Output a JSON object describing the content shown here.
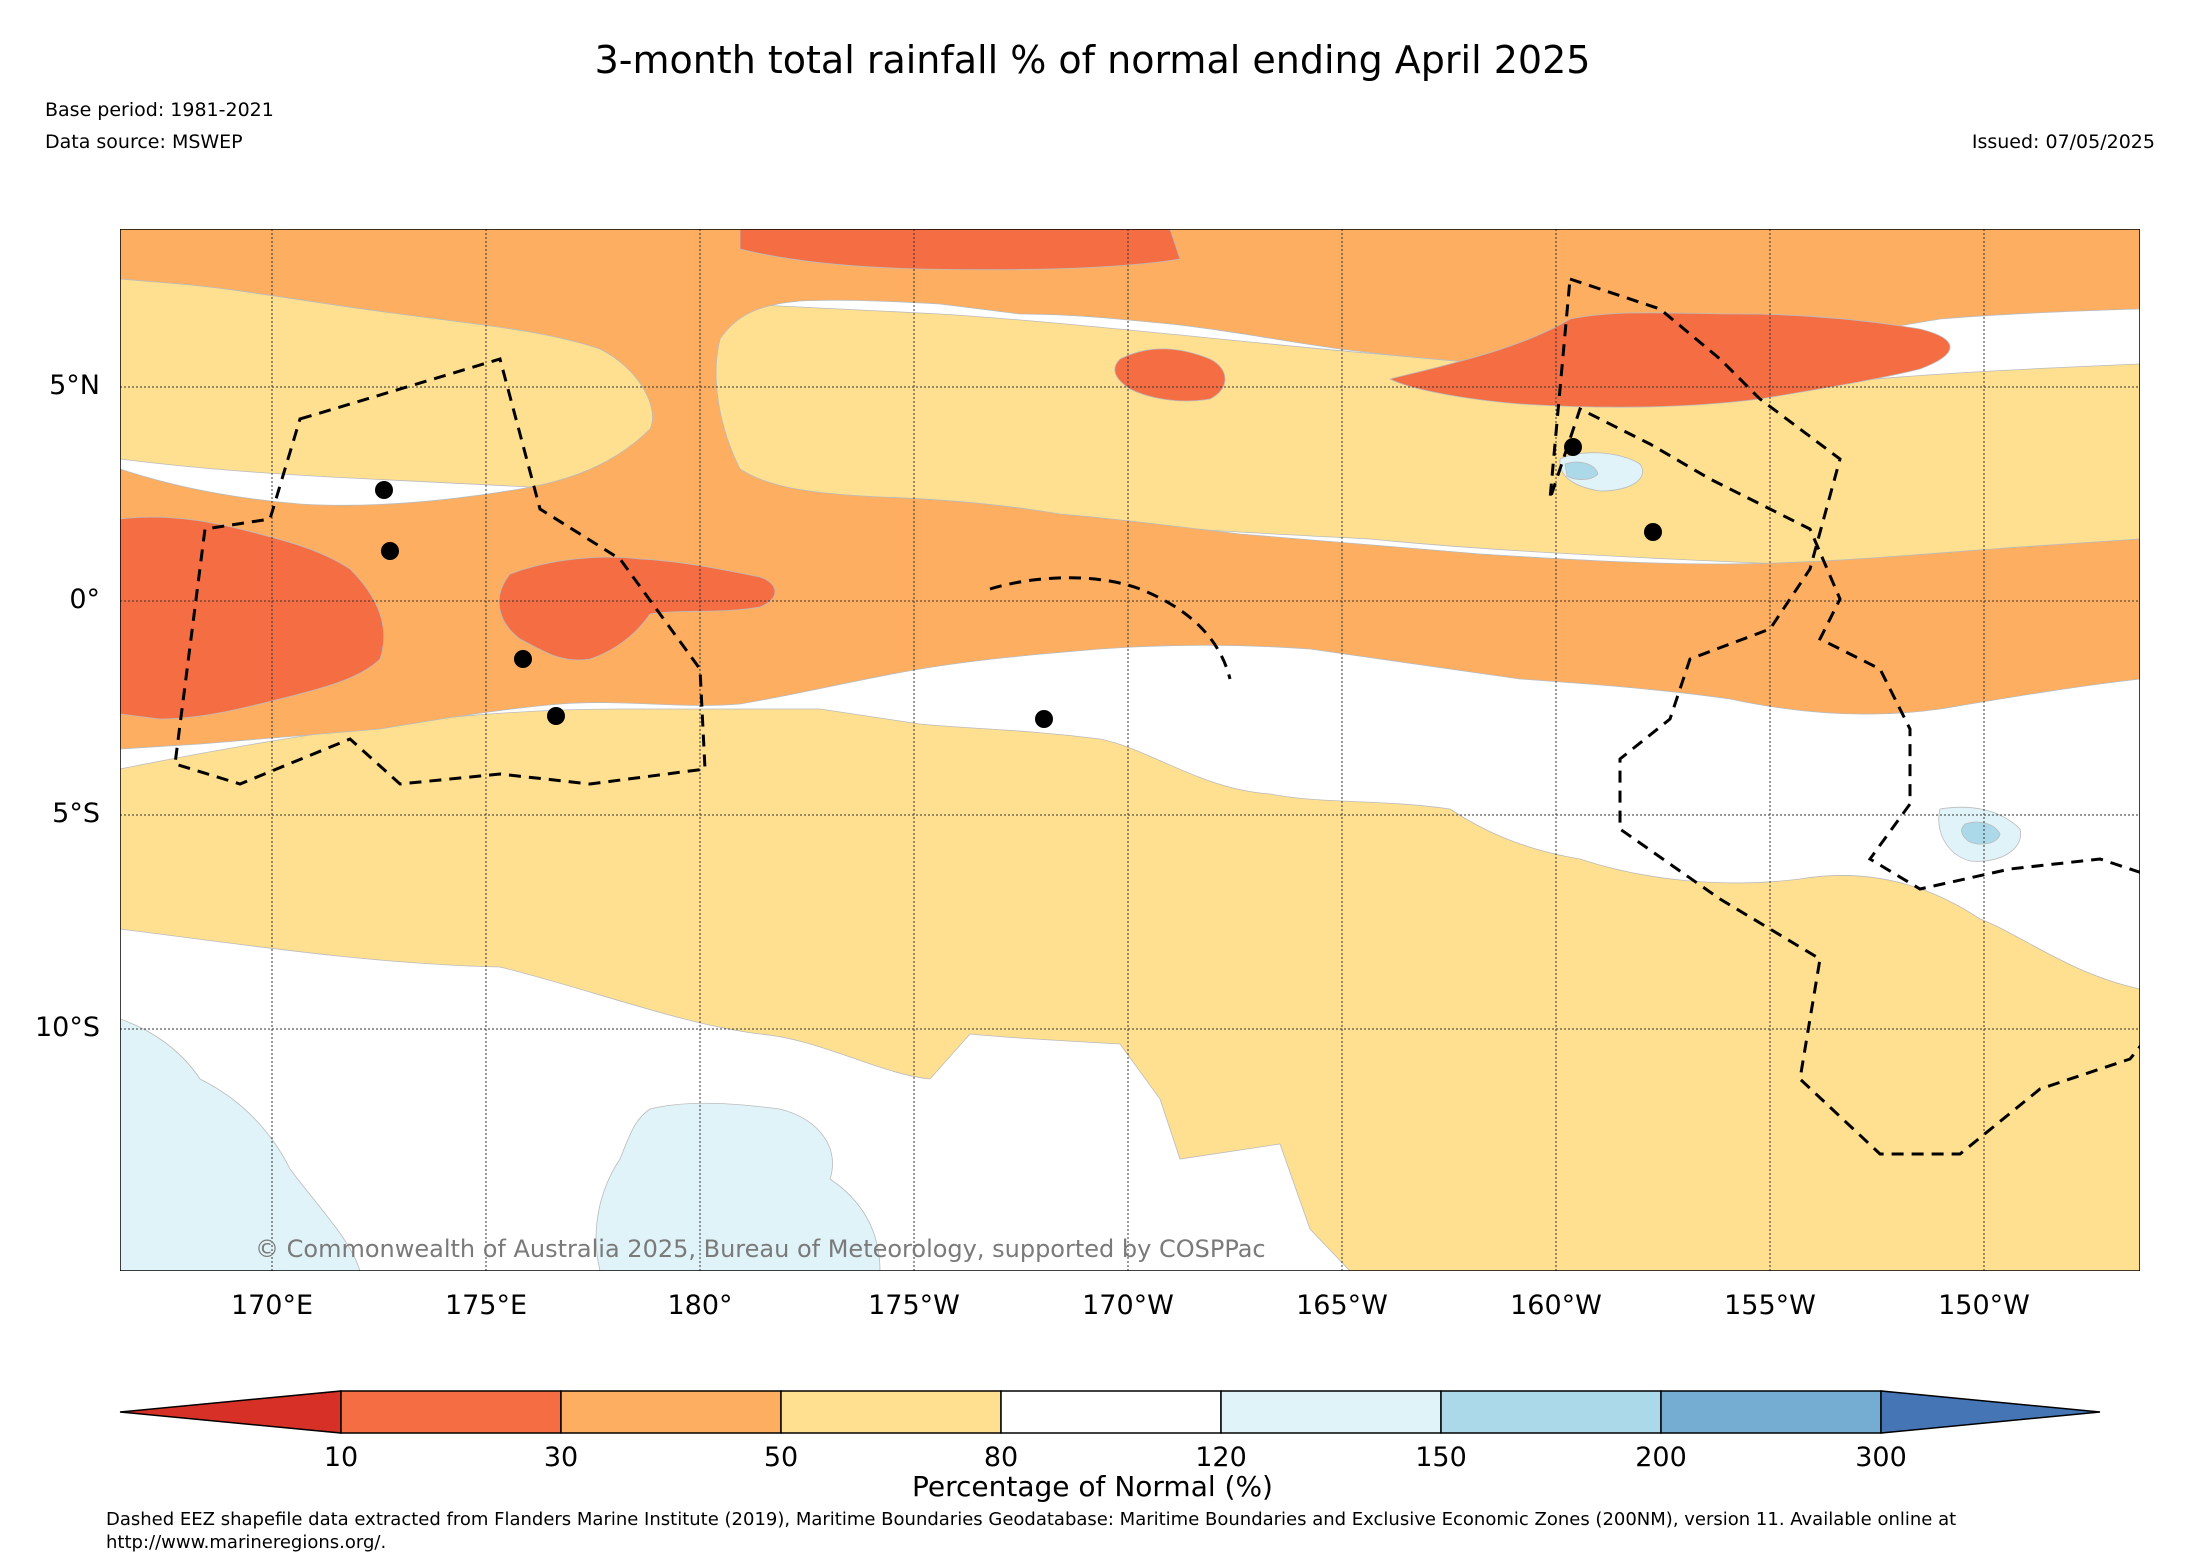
{
  "title": "3-month total rainfall % of normal ending April 2025",
  "base_period": "Base period: 1981-2021",
  "data_source": "Data source: MSWEP",
  "issued": "Issued: 07/05/2025",
  "copyright": "© Commonwealth of Australia 2025, Bureau of Meteorology, supported by COSPPac",
  "axes": {
    "latitude_labels": [
      "5°N",
      "0°",
      "5°S",
      "10°S"
    ],
    "longitude_labels": [
      "170°E",
      "175°E",
      "180°",
      "175°W",
      "170°W",
      "165°W",
      "160°W",
      "155°W",
      "150°W"
    ]
  },
  "colorbar": {
    "title": "Percentage of Normal (%)",
    "tick_labels": [
      "10",
      "30",
      "50",
      "80",
      "120",
      "150",
      "200",
      "300"
    ],
    "colors": [
      "#d73027",
      "#f46d43",
      "#fdae61",
      "#fee090",
      "#ffffff",
      "#e0f3f8",
      "#abd9e9",
      "#74add1",
      "#4575b4"
    ]
  },
  "footnote": "Dashed EEZ shapefile data extracted from Flanders Marine Institute (2019), Maritime Boundaries Geodatabase: Maritime Boundaries and Exclusive Economic Zones (200NM), version 11. Available online at http://www.marineregions.org/."
}
